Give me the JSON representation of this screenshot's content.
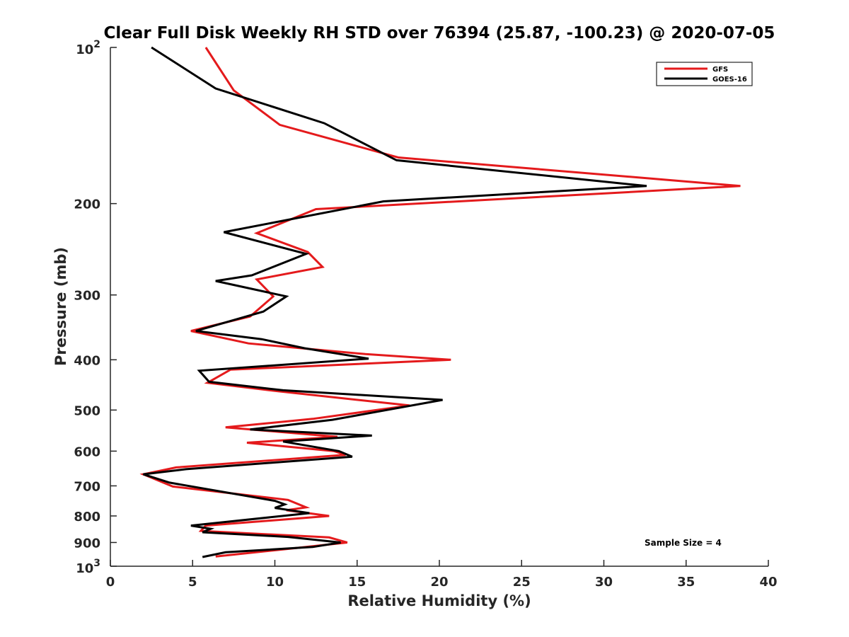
{
  "chart_data": {
    "type": "line",
    "title": "Clear Full Disk Weekly RH STD over 76394 (25.87, -100.23) @ 2020-07-05",
    "xlabel": "Relative Humidity (%)",
    "ylabel": "Pressure (mb)",
    "xlim": [
      0,
      40
    ],
    "ylim": [
      100,
      1000
    ],
    "y_scale": "log",
    "y_reversed": true,
    "x_ticks": [
      0,
      5,
      10,
      15,
      20,
      25,
      30,
      35,
      40
    ],
    "x_tick_labels": [
      "0",
      "5",
      "10",
      "15",
      "20",
      "25",
      "30",
      "35",
      "40"
    ],
    "y_ticks": [
      200,
      300,
      400,
      500,
      600,
      700,
      800,
      900
    ],
    "y_tick_labels": [
      "200",
      "300",
      "400",
      "500",
      "600",
      "700",
      "800",
      "900"
    ],
    "y_decade_ticks": [
      {
        "value": 100,
        "base": "10",
        "exp": "2"
      },
      {
        "value": 1000,
        "base": "10",
        "exp": "3"
      }
    ],
    "grid": false,
    "legend_position": "top-right",
    "annotation": "Sample Size = 4",
    "series": [
      {
        "name": "GFS",
        "color": "#e41a1c",
        "x": [
          5.8,
          7.5,
          10.3,
          17.5,
          38.3,
          12.5,
          8.9,
          12.0,
          12.9,
          8.9,
          9.9,
          8.5,
          4.9,
          8.4,
          15.5,
          20.7,
          7.3,
          5.9,
          10.2,
          18.2,
          12.3,
          7.0,
          13.8,
          8.3,
          13.6,
          14.3,
          4.0,
          2.0,
          3.8,
          10.8,
          11.9,
          10.7,
          13.3,
          5.8,
          5.5,
          13.3,
          14.4,
          11.2,
          6.4
        ],
        "y": [
          100,
          121,
          141,
          163,
          185,
          205,
          228,
          248,
          265,
          280,
          302,
          330,
          352,
          372,
          390,
          400,
          418,
          443,
          460,
          490,
          520,
          540,
          563,
          578,
          600,
          610,
          645,
          665,
          702,
          745,
          770,
          780,
          800,
          835,
          855,
          880,
          900,
          923,
          958
        ]
      },
      {
        "name": "GOES-16",
        "color": "#000000",
        "x": [
          2.5,
          6.4,
          13.0,
          17.4,
          32.6,
          16.6,
          6.9,
          11.9,
          8.6,
          6.4,
          10.7,
          9.3,
          5.2,
          9.2,
          11.8,
          15.7,
          5.4,
          6.0,
          10.5,
          20.2,
          13.5,
          8.5,
          15.9,
          10.5,
          13.9,
          14.7,
          4.6,
          2.0,
          3.6,
          10.0,
          10.6,
          10.0,
          12.1,
          4.9,
          6.1,
          5.6,
          10.8,
          14.0,
          12.3,
          7.0,
          5.6
        ],
        "y": [
          100,
          120,
          140,
          165,
          185,
          198,
          227,
          250,
          275,
          282,
          302,
          323,
          352,
          365,
          380,
          398,
          420,
          441,
          458,
          478,
          522,
          545,
          560,
          575,
          600,
          615,
          650,
          665,
          690,
          748,
          760,
          772,
          790,
          835,
          847,
          860,
          878,
          900,
          918,
          940,
          960
        ]
      }
    ]
  }
}
